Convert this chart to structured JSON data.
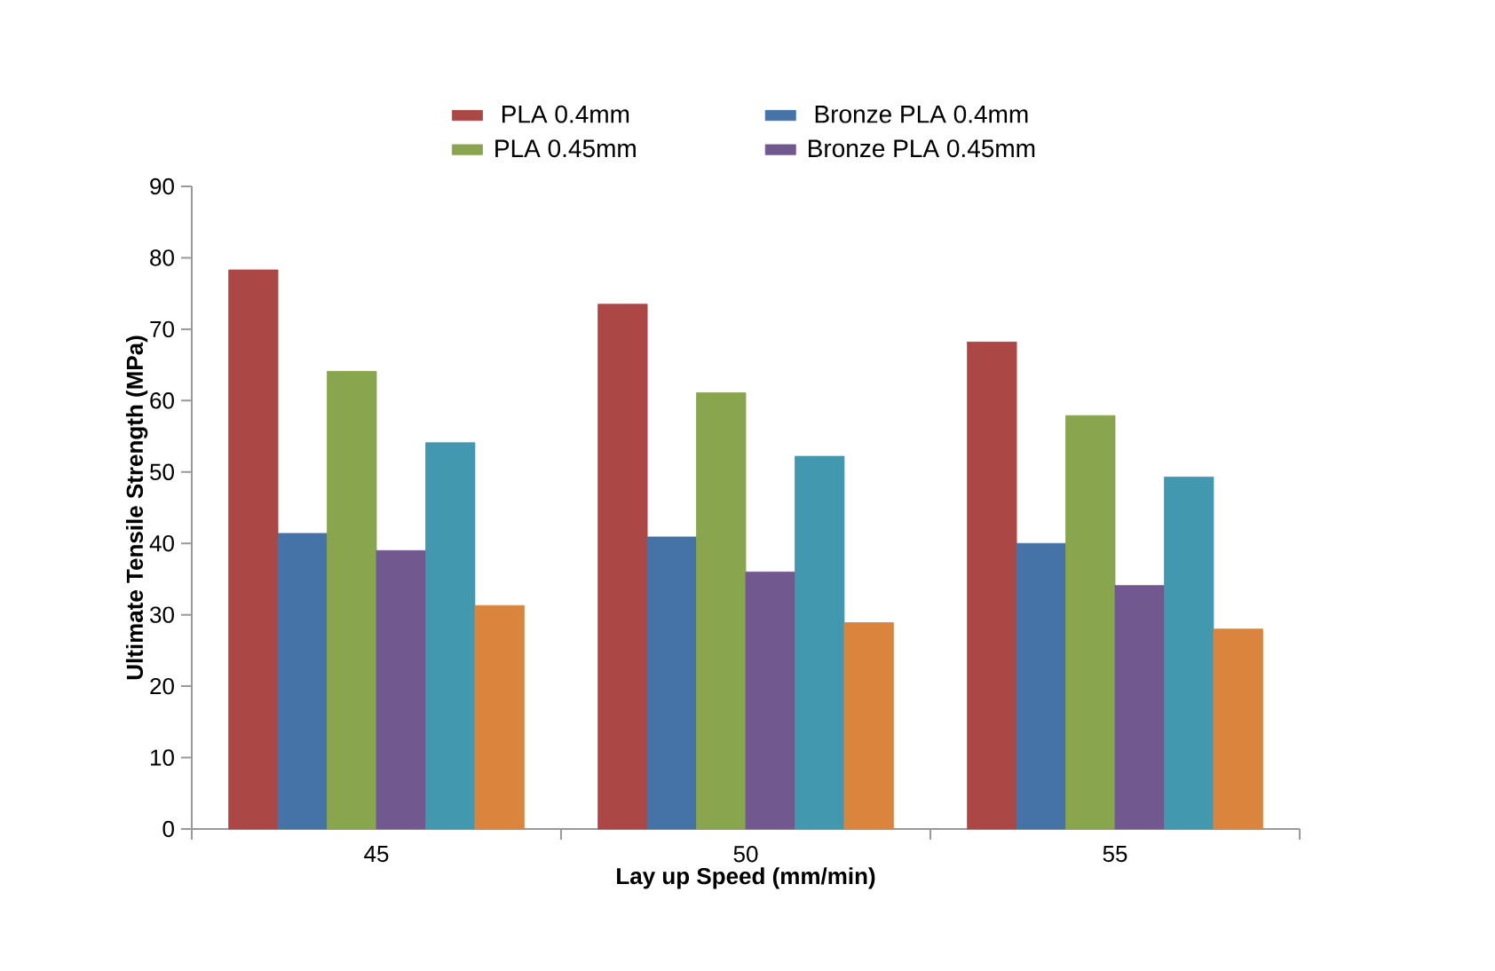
{
  "chart_data": {
    "type": "bar",
    "xlabel": "Lay up Speed (mm/min)",
    "ylabel": "Ultimate Tensile Strength (MPa)",
    "categories": [
      "45",
      "50",
      "55"
    ],
    "series": [
      {
        "name": "PLA 0.4mm",
        "color": "#ab4744",
        "values": [
          78.3,
          73.5,
          68.2
        ]
      },
      {
        "name": "Bronze PLA 0.4mm",
        "color": "#4572a7",
        "values": [
          41.4,
          40.9,
          40.0
        ]
      },
      {
        "name": "PLA 0.45mm",
        "color": "#89a54e",
        "values": [
          64.1,
          61.1,
          57.9
        ]
      },
      {
        "name": "Bronze PLA 0.45mm",
        "color": "#71588f",
        "values": [
          39.0,
          36.0,
          34.1
        ]
      },
      {
        "color": "#4198af",
        "values": [
          54.1,
          52.2,
          49.3
        ]
      },
      {
        "color": "#db843d",
        "values": [
          31.3,
          28.9,
          28.0
        ]
      }
    ],
    "ylim": [
      0,
      90
    ],
    "yticks": [
      0,
      10,
      20,
      30,
      40,
      50,
      60,
      70,
      80,
      90
    ],
    "legend": "top"
  }
}
